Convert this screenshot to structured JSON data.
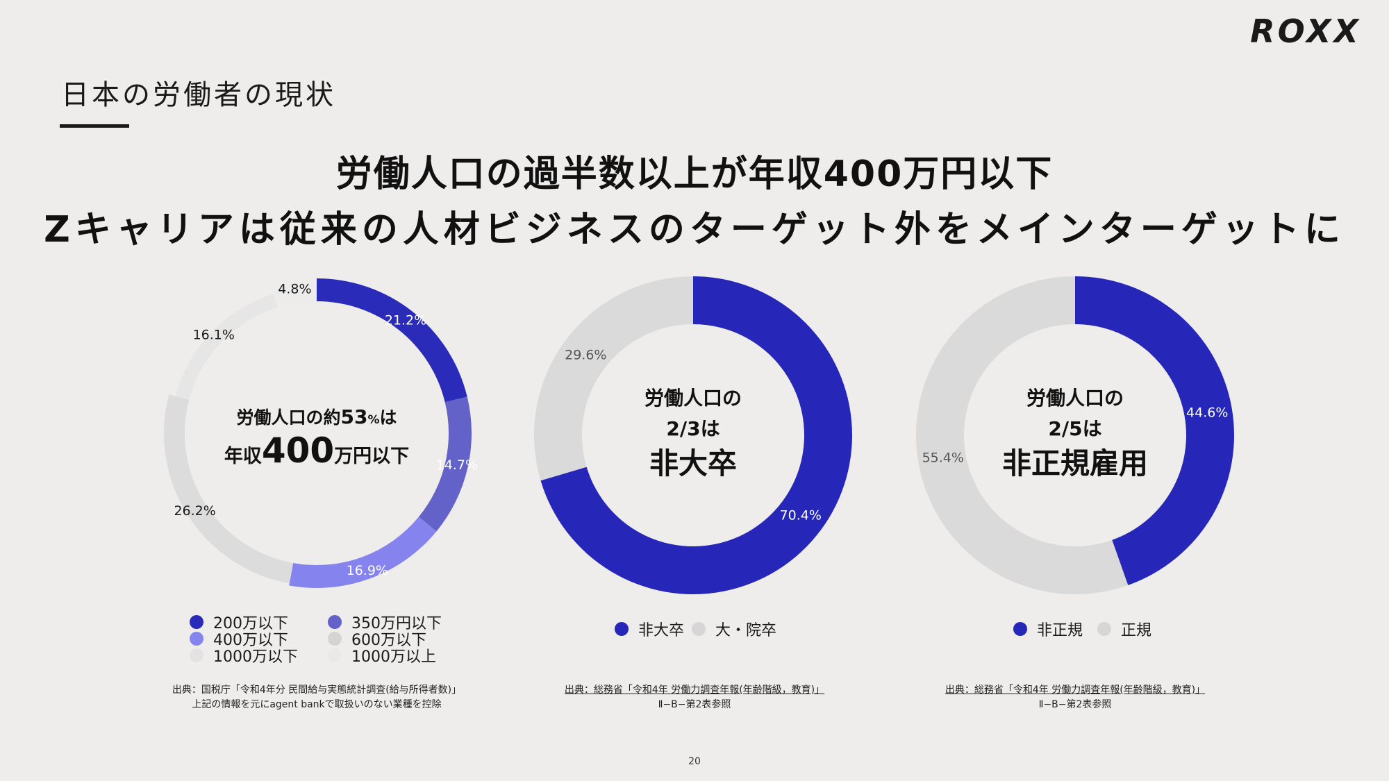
{
  "brand": {
    "logo": "ROXX"
  },
  "section": {
    "title": "日本の労働者の現状"
  },
  "headline": {
    "line1": "労働人口の過半数以上が年収400万円以下",
    "line2": "Zキャリアは従来の人材ビジネスのターゲット外をメインターゲットに"
  },
  "chart_data": [
    {
      "type": "pie",
      "donut": true,
      "categories": [
        "200万以下",
        "350万円以下",
        "400万以下",
        "600万以下",
        "1000万以下",
        "1000万以上"
      ],
      "values": [
        21.2,
        14.7,
        16.9,
        26.2,
        16.1,
        4.8
      ],
      "labels": [
        "21.2%",
        "14.7%",
        "16.9%",
        "26.2%",
        "16.1%",
        "4.8%"
      ],
      "colors": [
        "#2a2bb8",
        "#6362c8",
        "#8584ee",
        "#dcdcdc",
        "#e6e6e6",
        "#ececec"
      ],
      "label_colors": [
        "#ffffff",
        "#ffffff",
        "#ffffff",
        "#1a1a1a",
        "#1a1a1a",
        "#1a1a1a"
      ],
      "center": {
        "line1a": "労働人口の約",
        "line1b": "53",
        "line1c": "%",
        "line1d": "は",
        "line2a": "年収",
        "line2b": "400",
        "line2c": "万円以下"
      },
      "legend": [
        "200万以下",
        "350万円以下",
        "400万以下",
        "600万以下",
        "1000万以下",
        "1000万以上"
      ],
      "source": {
        "line1": "出典：国税庁「令和4年分 民間給与実態統計調査(給与所得者数)」",
        "line2": "上記の情報を元にagent bankで取扱いのない業種を控除"
      }
    },
    {
      "type": "pie",
      "donut": true,
      "categories": [
        "非大卒",
        "大・院卒"
      ],
      "values": [
        70.4,
        29.6
      ],
      "labels": [
        "70.4%",
        "29.6%"
      ],
      "colors": [
        "#2627b9",
        "#dadada"
      ],
      "label_colors": [
        "#ffffff",
        "#555555"
      ],
      "center": {
        "line1": "労働人口の",
        "line2": "2/3は",
        "line3": "非大卒"
      },
      "legend": [
        "非大卒",
        "大・院卒"
      ],
      "source": {
        "line1": "出典：総務省「令和4年 労働力調査年報(年齢階級，教育)」",
        "line2": "Ⅱ−B−第2表参照"
      }
    },
    {
      "type": "pie",
      "donut": true,
      "categories": [
        "非正規",
        "正規"
      ],
      "values": [
        44.6,
        55.4
      ],
      "labels": [
        "44.6%",
        "55.4%"
      ],
      "colors": [
        "#2627b9",
        "#dadada"
      ],
      "label_colors": [
        "#ffffff",
        "#555555"
      ],
      "center": {
        "line1": "労働人口の",
        "line2": "2/5は",
        "line3": "非正規雇用"
      },
      "legend": [
        "非正規",
        "正規"
      ],
      "source": {
        "line1": "出典：総務省「令和4年 労働力調査年報(年齢階級，教育)」",
        "line2": "Ⅱ−B−第2表参照"
      }
    }
  ],
  "page": {
    "number": "20"
  }
}
